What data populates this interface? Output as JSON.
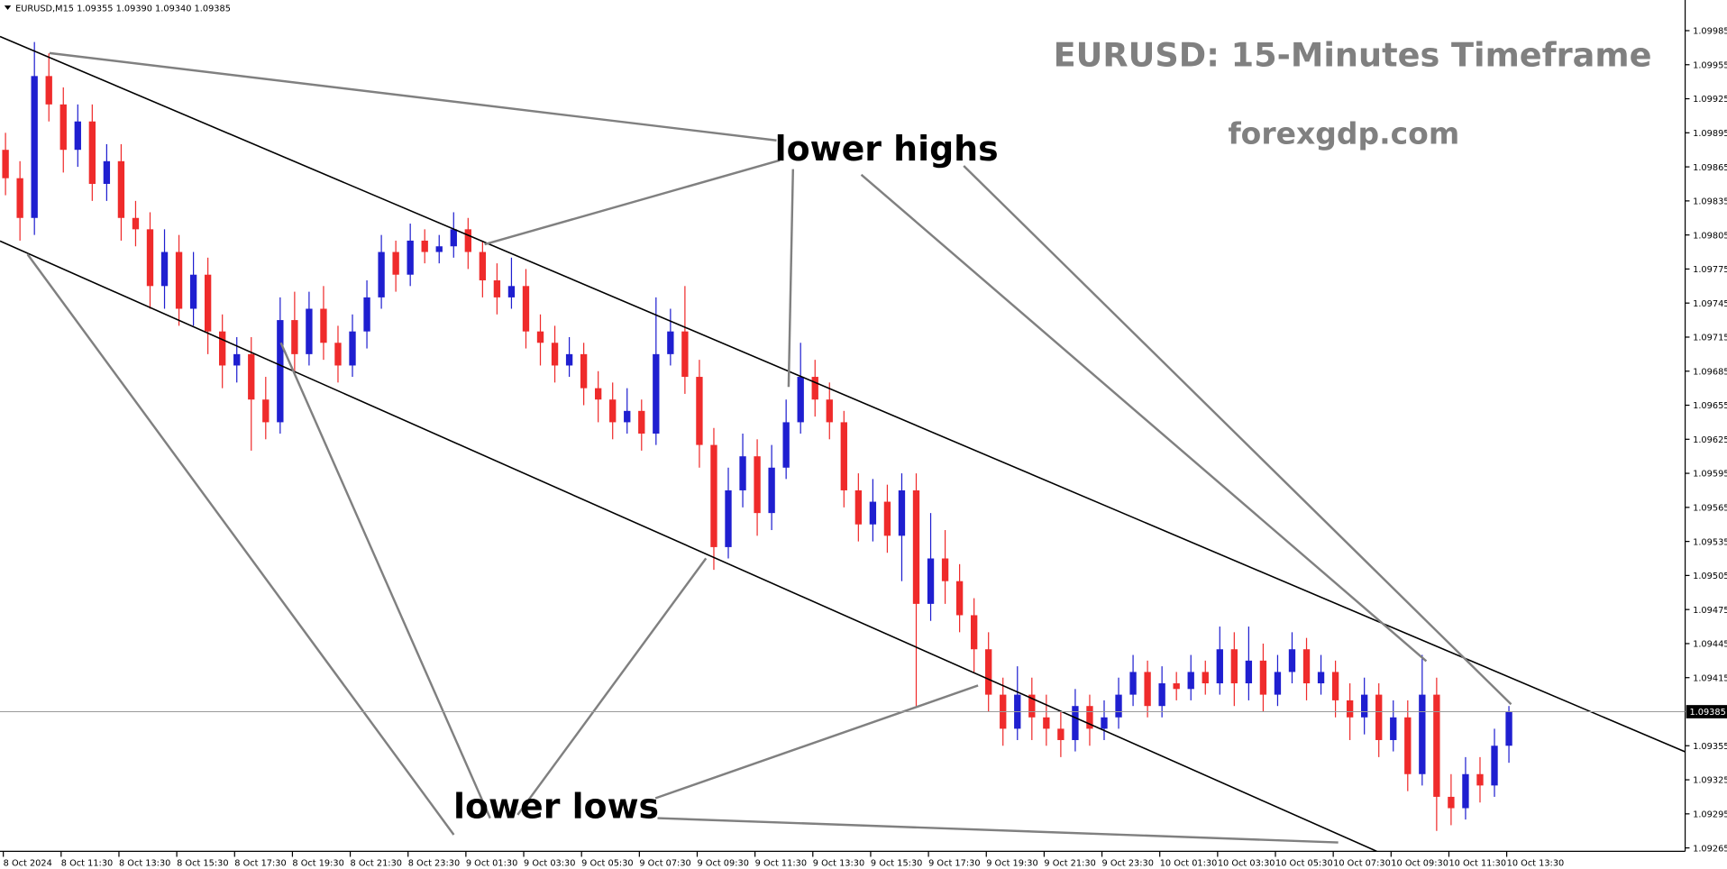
{
  "chart_data": {
    "type": "candlestick",
    "header": "EURUSD,M15  1.09355 1.09390 1.09340 1.09385",
    "title": "EURUSD: 15-Minutes Timeframe",
    "subtitle": "forexgdp.com",
    "annotations": [
      "lower highs",
      "lower lows"
    ],
    "current_price": 1.09385,
    "up_color": "#1f1fd0",
    "down_color": "#ef2b2b",
    "ylim": [
      1.09262,
      1.10012
    ],
    "yticks": [
      1.09985,
      1.09955,
      1.09925,
      1.09895,
      1.09865,
      1.09835,
      1.09805,
      1.09775,
      1.09745,
      1.09715,
      1.09685,
      1.09655,
      1.09625,
      1.09595,
      1.09565,
      1.09535,
      1.09505,
      1.09475,
      1.09445,
      1.09415,
      1.09355,
      1.09325,
      1.09295,
      1.09265
    ],
    "categories": [
      "8 Oct 2024",
      null,
      null,
      null,
      "8 Oct 11:30",
      null,
      null,
      null,
      "8 Oct 13:30",
      null,
      null,
      null,
      "8 Oct 15:30",
      null,
      null,
      null,
      "8 Oct 17:30",
      null,
      null,
      null,
      "8 Oct 19:30",
      null,
      null,
      null,
      "8 Oct 21:30",
      null,
      null,
      null,
      "8 Oct 23:30",
      null,
      null,
      null,
      "9 Oct 01:30",
      null,
      null,
      null,
      "9 Oct 03:30",
      null,
      null,
      null,
      "9 Oct 05:30",
      null,
      null,
      null,
      "9 Oct 07:30",
      null,
      null,
      null,
      "9 Oct 09:30",
      null,
      null,
      null,
      "9 Oct 11:30",
      null,
      null,
      null,
      "9 Oct 13:30",
      null,
      null,
      null,
      "9 Oct 15:30",
      null,
      null,
      null,
      "9 Oct 17:30",
      null,
      null,
      null,
      "9 Oct 19:30",
      null,
      null,
      null,
      "9 Oct 21:30",
      null,
      null,
      null,
      "9 Oct 23:30",
      null,
      null,
      null,
      "10 Oct 01:30",
      null,
      null,
      null,
      "10 Oct 03:30",
      null,
      null,
      null,
      "10 Oct 05:30",
      null,
      null,
      null,
      "10 Oct 07:30",
      null,
      null,
      null,
      "10 Oct 09:30",
      null,
      null,
      null,
      "10 Oct 11:30",
      null,
      null,
      null,
      "10 Oct 13:30"
    ],
    "open": [
      1.0988,
      1.09855,
      1.0982,
      1.09945,
      1.0992,
      1.0988,
      1.09905,
      1.0985,
      1.0987,
      1.0982,
      1.0981,
      1.0976,
      1.0979,
      1.0974,
      1.0977,
      1.0972,
      1.0969,
      1.097,
      1.0966,
      1.0964,
      1.0973,
      1.097,
      1.0974,
      1.0971,
      1.0969,
      1.0972,
      1.0975,
      1.0979,
      1.0977,
      1.098,
      1.0979,
      1.09795,
      1.0981,
      1.0979,
      1.09765,
      1.0975,
      1.0976,
      1.0972,
      1.0971,
      1.0969,
      1.097,
      1.0967,
      1.0966,
      1.0964,
      1.0965,
      1.0963,
      1.097,
      1.0972,
      1.0968,
      1.0962,
      1.0953,
      1.0958,
      1.0961,
      1.0956,
      1.096,
      1.0964,
      1.0968,
      1.0966,
      1.0964,
      1.0958,
      1.0955,
      1.0957,
      1.0954,
      1.0958,
      1.0948,
      1.0952,
      1.095,
      1.0947,
      1.0944,
      1.094,
      1.0937,
      1.094,
      1.0938,
      1.0937,
      1.0936,
      1.0939,
      1.0937,
      1.0938,
      1.094,
      1.0942,
      1.0939,
      1.0941,
      1.09405,
      1.0942,
      1.0941,
      1.0944,
      1.0941,
      1.0943,
      1.094,
      1.0942,
      1.0944,
      1.0941,
      1.0942,
      1.09395,
      1.0938,
      1.094,
      1.0936,
      1.0938,
      1.0933,
      1.094,
      1.0931,
      1.093,
      1.0933,
      1.0932,
      1.09355
    ],
    "high": [
      1.09895,
      1.0987,
      1.09975,
      1.09965,
      1.09935,
      1.0992,
      1.0992,
      1.09885,
      1.09885,
      1.09835,
      1.09825,
      1.0981,
      1.09805,
      1.0979,
      1.09785,
      1.09735,
      1.09715,
      1.09715,
      1.0968,
      1.0975,
      1.09755,
      1.09755,
      1.0976,
      1.09725,
      1.09735,
      1.09765,
      1.09805,
      1.098,
      1.09815,
      1.0981,
      1.09805,
      1.09825,
      1.0982,
      1.098,
      1.0978,
      1.09785,
      1.09775,
      1.09735,
      1.09725,
      1.09715,
      1.0971,
      1.09685,
      1.09675,
      1.0967,
      1.0966,
      1.0975,
      1.0974,
      1.0976,
      1.09695,
      1.09635,
      1.096,
      1.0963,
      1.09625,
      1.0962,
      1.0966,
      1.0971,
      1.09695,
      1.09675,
      1.0965,
      1.09595,
      1.0959,
      1.09585,
      1.09595,
      1.09595,
      1.0956,
      1.09545,
      1.09515,
      1.09485,
      1.09455,
      1.09415,
      1.09425,
      1.09415,
      1.094,
      1.09385,
      1.09405,
      1.094,
      1.09395,
      1.09415,
      1.09435,
      1.0943,
      1.09425,
      1.0942,
      1.09435,
      1.0943,
      1.0946,
      1.09455,
      1.0946,
      1.09445,
      1.09435,
      1.09455,
      1.0945,
      1.09435,
      1.0943,
      1.0941,
      1.09415,
      1.0941,
      1.09395,
      1.09395,
      1.09435,
      1.09415,
      1.0933,
      1.09345,
      1.09345,
      1.0937,
      1.0939
    ],
    "low": [
      1.0984,
      1.098,
      1.09805,
      1.09905,
      1.0986,
      1.09865,
      1.09835,
      1.09835,
      1.098,
      1.09795,
      1.0974,
      1.0974,
      1.09725,
      1.09725,
      1.097,
      1.0967,
      1.09675,
      1.09615,
      1.09625,
      1.0963,
      1.09685,
      1.0969,
      1.09695,
      1.09675,
      1.0968,
      1.09705,
      1.0974,
      1.09755,
      1.0976,
      1.0978,
      1.0978,
      1.09785,
      1.09775,
      1.0975,
      1.09735,
      1.0974,
      1.09705,
      1.0969,
      1.09675,
      1.0968,
      1.09655,
      1.0964,
      1.09625,
      1.0963,
      1.09615,
      1.0962,
      1.0969,
      1.09665,
      1.096,
      1.0951,
      1.0952,
      1.09565,
      1.0954,
      1.09545,
      1.0959,
      1.0963,
      1.09645,
      1.09625,
      1.09565,
      1.09535,
      1.09535,
      1.09525,
      1.095,
      1.0939,
      1.09465,
      1.0948,
      1.09455,
      1.0942,
      1.09385,
      1.09355,
      1.0936,
      1.0936,
      1.09355,
      1.09345,
      1.0935,
      1.09355,
      1.0936,
      1.0937,
      1.0939,
      1.0938,
      1.0938,
      1.09395,
      1.09395,
      1.094,
      1.094,
      1.0939,
      1.09395,
      1.09385,
      1.0939,
      1.0941,
      1.09395,
      1.094,
      1.0938,
      1.0936,
      1.09365,
      1.09345,
      1.0935,
      1.09315,
      1.0932,
      1.0928,
      1.09285,
      1.0929,
      1.09305,
      1.0931,
      1.0934
    ],
    "close": [
      1.09855,
      1.0982,
      1.09945,
      1.0992,
      1.0988,
      1.09905,
      1.0985,
      1.0987,
      1.0982,
      1.0981,
      1.0976,
      1.0979,
      1.0974,
      1.0977,
      1.0972,
      1.0969,
      1.097,
      1.0966,
      1.0964,
      1.0973,
      1.097,
      1.0974,
      1.0971,
      1.0969,
      1.0972,
      1.0975,
      1.0979,
      1.0977,
      1.098,
      1.0979,
      1.09795,
      1.0981,
      1.0979,
      1.09765,
      1.0975,
      1.0976,
      1.0972,
      1.0971,
      1.0969,
      1.097,
      1.0967,
      1.0966,
      1.0964,
      1.0965,
      1.0963,
      1.097,
      1.0972,
      1.0968,
      1.0962,
      1.0953,
      1.0958,
      1.0961,
      1.0956,
      1.096,
      1.0964,
      1.0968,
      1.0966,
      1.0964,
      1.0958,
      1.0955,
      1.0957,
      1.0954,
      1.0958,
      1.0948,
      1.0952,
      1.095,
      1.0947,
      1.0944,
      1.094,
      1.0937,
      1.094,
      1.0938,
      1.0937,
      1.0936,
      1.0939,
      1.0937,
      1.0938,
      1.094,
      1.0942,
      1.0939,
      1.0941,
      1.09405,
      1.0942,
      1.0941,
      1.0944,
      1.0941,
      1.0943,
      1.094,
      1.0942,
      1.0944,
      1.0941,
      1.0942,
      1.09395,
      1.0938,
      1.094,
      1.0936,
      1.0938,
      1.0933,
      1.094,
      1.0931,
      1.093,
      1.0933,
      1.0932,
      1.09355,
      1.09385
    ]
  }
}
